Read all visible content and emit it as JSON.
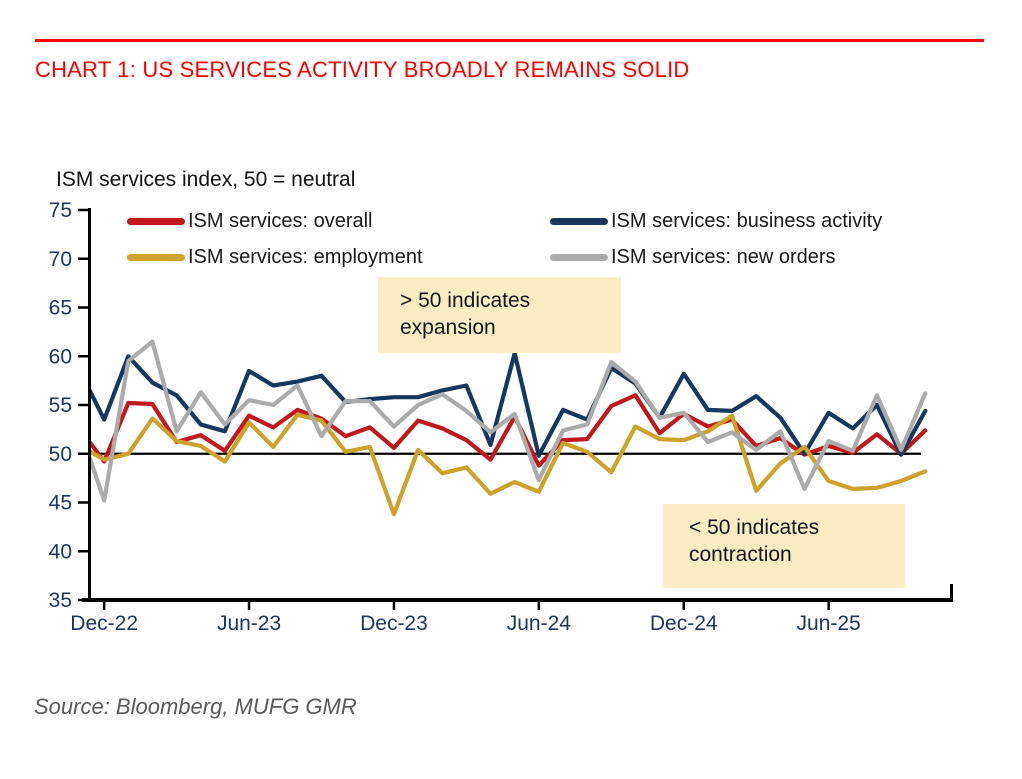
{
  "title": "CHART 1: US SERVICES ACTIVITY BROADLY REMAINS SOLID",
  "source": "Source: Bloomberg, MUFG GMR",
  "colors": {
    "accent_red": "#FF0000",
    "axis_label": "#20365C",
    "annotation_bg": "#FAEDC3",
    "baseline_black": "#000000"
  },
  "chart_data": {
    "type": "line",
    "title": "CHART 1: US SERVICES ACTIVITY BROADLY REMAINS SOLID",
    "ylabel": "ISM services index, 50 = neutral",
    "ylim": [
      35,
      75
    ],
    "y_ticks": [
      75,
      70,
      65,
      60,
      55,
      50,
      45,
      40,
      35
    ],
    "x": [
      "Nov-22",
      "Dec-22",
      "Jan-23",
      "Feb-23",
      "Mar-23",
      "Apr-23",
      "May-23",
      "Jun-23",
      "Jul-23",
      "Aug-23",
      "Sep-23",
      "Oct-23",
      "Nov-23",
      "Dec-23",
      "Jan-24",
      "Feb-24",
      "Mar-24",
      "Apr-24",
      "May-24",
      "Jun-24",
      "Jul-24",
      "Aug-24",
      "Sep-24",
      "Oct-24",
      "Nov-24",
      "Dec-24",
      "Jan-25",
      "Feb-25",
      "Mar-25",
      "Apr-25",
      "May-25",
      "Jun-25",
      "Jul-25",
      "Aug-25",
      "Sep-25",
      "Oct-25"
    ],
    "x_tick_labels": [
      "Dec-22",
      "Jun-23",
      "Dec-23",
      "Jun-24",
      "Dec-24",
      "Jun-25"
    ],
    "x_tick_positions": [
      1,
      7,
      13,
      19,
      25,
      31
    ],
    "baseline": 50,
    "grid": false,
    "legend_position": "top-inside",
    "series": [
      {
        "name": "ISM services: overall",
        "color": "#C0181C",
        "values": [
          52.5,
          49.2,
          55.2,
          55.1,
          51.2,
          51.9,
          50.3,
          53.9,
          52.7,
          54.5,
          53.6,
          51.8,
          52.7,
          50.6,
          53.4,
          52.6,
          51.4,
          49.4,
          53.8,
          48.8,
          51.4,
          51.5,
          54.9,
          56.0,
          52.1,
          54.1,
          52.8,
          53.5,
          50.8,
          51.6,
          49.9,
          50.8,
          50.1,
          52.0,
          50.0,
          52.4
        ]
      },
      {
        "name": "ISM services: business activity",
        "color": "#17375E",
        "values": [
          58.5,
          53.5,
          60.0,
          57.3,
          56.0,
          53.0,
          52.3,
          58.5,
          57.0,
          57.4,
          58.0,
          55.3,
          55.6,
          55.8,
          55.8,
          56.5,
          57.0,
          50.9,
          60.3,
          49.8,
          54.5,
          53.5,
          58.8,
          57.2,
          53.7,
          58.2,
          54.5,
          54.4,
          55.9,
          53.7,
          50.0,
          54.2,
          52.6,
          55.0,
          49.9,
          54.4
        ]
      },
      {
        "name": "ISM services: employment",
        "color": "#CDA22B",
        "values": [
          50.8,
          49.4,
          50.0,
          53.6,
          51.3,
          50.8,
          49.2,
          53.2,
          50.7,
          54.0,
          53.4,
          50.2,
          50.7,
          43.8,
          50.4,
          48.0,
          48.6,
          45.9,
          47.1,
          46.1,
          51.1,
          50.2,
          48.1,
          52.8,
          51.5,
          51.4,
          52.3,
          53.9,
          46.2,
          49.0,
          50.7,
          47.2,
          46.4,
          46.5,
          47.2,
          48.2
        ]
      },
      {
        "name": "ISM services: new orders",
        "color": "#ABABAB",
        "values": [
          52.5,
          45.2,
          59.5,
          61.5,
          52.3,
          56.3,
          53.0,
          55.5,
          55.0,
          57.0,
          51.8,
          55.4,
          55.4,
          52.8,
          55.0,
          56.1,
          54.4,
          52.2,
          54.1,
          47.3,
          52.4,
          53.0,
          59.4,
          57.4,
          53.7,
          54.2,
          51.2,
          52.2,
          50.4,
          52.3,
          46.4,
          51.3,
          50.3,
          56.0,
          50.4,
          56.2
        ]
      }
    ],
    "annotations": [
      {
        "text": "> 50 indicates\nexpansion"
      },
      {
        "text": "< 50 indicates\ncontraction"
      }
    ]
  }
}
